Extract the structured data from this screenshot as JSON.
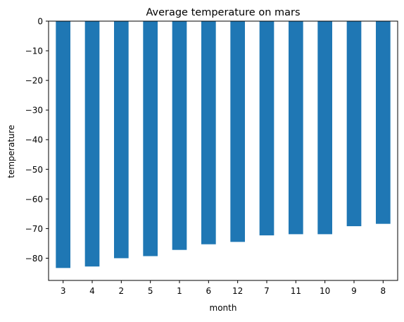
{
  "chart_data": {
    "type": "bar",
    "title": "Average temperature on mars",
    "xlabel": "month",
    "ylabel": "temperature",
    "categories": [
      "3",
      "4",
      "2",
      "5",
      "1",
      "6",
      "12",
      "7",
      "11",
      "10",
      "9",
      "8"
    ],
    "values": [
      -83.3,
      -82.8,
      -80.0,
      -79.3,
      -77.2,
      -75.3,
      -74.5,
      -72.3,
      -71.9,
      -71.9,
      -69.2,
      -68.4
    ],
    "ylim": [
      -87.5,
      0
    ],
    "yticks": [
      0,
      -10,
      -20,
      -30,
      -40,
      -50,
      -60,
      -70,
      -80
    ],
    "ytick_labels": [
      "0",
      "−10",
      "−20",
      "−30",
      "−40",
      "−50",
      "−60",
      "−70",
      "−80"
    ],
    "bar_color": "#1f77b4",
    "grid": false,
    "legend": "none"
  }
}
